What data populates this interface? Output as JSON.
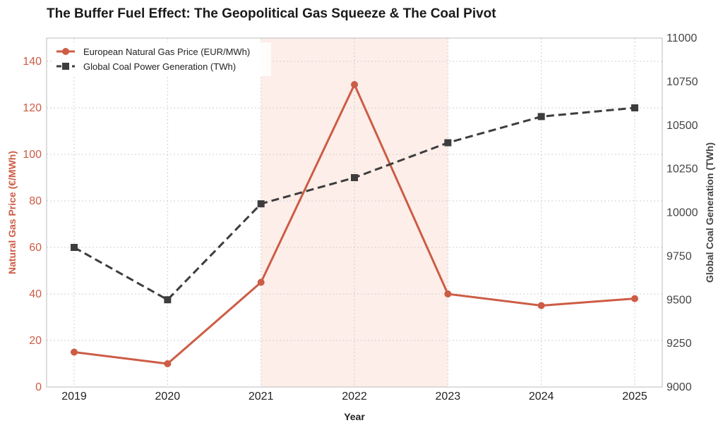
{
  "chart_data": {
    "type": "line",
    "title": "The Buffer Fuel Effect: The Geopolitical Gas Squeeze & The Coal Pivot",
    "xlabel": "Year",
    "ylabel_left": "Natural Gas Price (€/MWh)",
    "ylabel_right": "Global Coal Generation (TWh)",
    "x": [
      "2019",
      "2020",
      "2021",
      "2022",
      "2023",
      "2024",
      "2025"
    ],
    "ylim_left": [
      0,
      150
    ],
    "yticks_left": [
      0,
      20,
      40,
      60,
      80,
      100,
      120,
      140
    ],
    "ylim_right": [
      9000,
      11000
    ],
    "yticks_right": [
      9000,
      9250,
      9500,
      9750,
      10000,
      10250,
      10500,
      10750,
      11000
    ],
    "grid": true,
    "legend_position": "top-left",
    "highlight_span": [
      "2021",
      "2023"
    ],
    "series": [
      {
        "name": "European Natural Gas Price (EUR/MWh)",
        "axis": "left",
        "color": "#cd5c45",
        "style": "solid",
        "marker": "circle",
        "values": [
          15,
          10,
          45,
          130,
          40,
          35,
          38
        ]
      },
      {
        "name": "Global Coal Power Generation (TWh)",
        "axis": "right",
        "color": "#3d3d3d",
        "style": "dashed",
        "marker": "square",
        "values": [
          9800,
          9500,
          10050,
          10200,
          10400,
          10550,
          10600
        ]
      }
    ],
    "colors": {
      "left_axis": "#cd5c45",
      "right_axis": "#444444",
      "highlight": "#fdeee9"
    }
  }
}
